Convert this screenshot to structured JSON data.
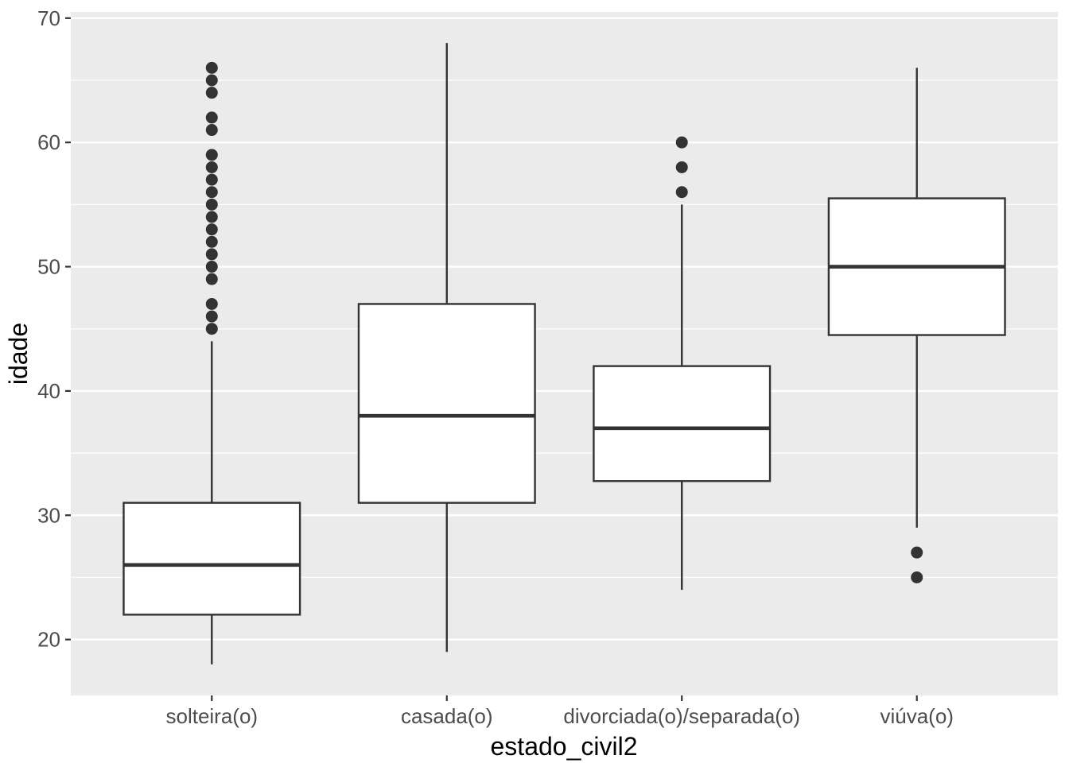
{
  "chart_data": {
    "type": "boxplot",
    "title": "",
    "xlabel": "estado_civil2",
    "ylabel": "idade",
    "categories": [
      "solteira(o)",
      "casada(o)",
      "divorciada(o)/separada(o)",
      "viúva(o)"
    ],
    "series": [
      {
        "category": "solteira(o)",
        "lower_whisker": 18,
        "q1": 22,
        "median": 26,
        "q3": 31,
        "upper_whisker": 44,
        "outliers": [
          45,
          46,
          47,
          49,
          50,
          51,
          52,
          53,
          54,
          55,
          56,
          57,
          58,
          59,
          61,
          62,
          64,
          65,
          66
        ]
      },
      {
        "category": "casada(o)",
        "lower_whisker": 19,
        "q1": 31,
        "median": 38,
        "q3": 47,
        "upper_whisker": 68,
        "outliers": []
      },
      {
        "category": "divorciada(o)/separada(o)",
        "lower_whisker": 24,
        "q1": 32.75,
        "median": 37,
        "q3": 42,
        "upper_whisker": 55,
        "outliers": [
          56,
          58,
          60
        ]
      },
      {
        "category": "viúva(o)",
        "lower_whisker": 29,
        "q1": 44.5,
        "median": 50,
        "q3": 55.5,
        "upper_whisker": 66,
        "outliers": [
          27,
          25
        ]
      }
    ],
    "y_axis": {
      "major_ticks": [
        20,
        30,
        40,
        50,
        60,
        70
      ],
      "minor_ticks": [
        25,
        35,
        45,
        55,
        65
      ],
      "range": [
        15.5,
        70.5
      ],
      "grid": true
    },
    "x_axis": {
      "tick_labels": [
        "solteira(o)",
        "casada(o)",
        "divorciada(o)/separada(o)",
        "viúva(o)"
      ]
    },
    "legend": "none",
    "colors": {
      "figure_background": "#FFFFFF",
      "panel_background": "#EBEBEB",
      "gridline": "#FFFFFF",
      "box_fill": "#FFFFFF",
      "box_stroke": "#333333",
      "median_stroke": "#333333",
      "whisker_stroke": "#333333",
      "outlier_fill": "#333333",
      "tick_mark": "#333333",
      "tick_label": "#4D4D4D",
      "axis_title": "#000000"
    }
  }
}
